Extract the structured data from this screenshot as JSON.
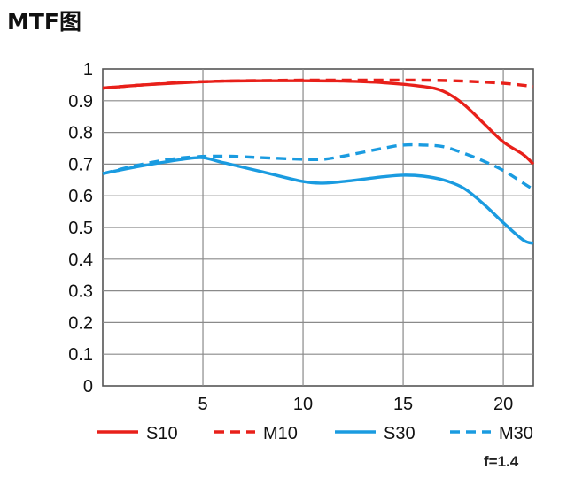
{
  "page": {
    "title": "MTF图",
    "aperture_label": "f=1.4"
  },
  "chart_data": {
    "type": "line",
    "title": "MTF图",
    "xlabel": "",
    "ylabel": "",
    "xlim": [
      0,
      21.5
    ],
    "ylim": [
      0,
      1
    ],
    "x_ticks": [
      5,
      10,
      15,
      20
    ],
    "x_tick_labels": [
      "5",
      "10",
      "15",
      "20"
    ],
    "y_ticks": [
      0,
      0.1,
      0.2,
      0.3,
      0.4,
      0.5,
      0.6,
      0.7,
      0.8,
      0.9,
      1
    ],
    "y_tick_labels": [
      "0",
      "0.1",
      "0.2",
      "0.3",
      "0.4",
      "0.5",
      "0.6",
      "0.7",
      "0.8",
      "0.9",
      "1"
    ],
    "grid": true,
    "legend_position": "bottom",
    "series": [
      {
        "name": "S10",
        "color": "#e8201a",
        "dash": "solid",
        "x": [
          0,
          2,
          4,
          6,
          8,
          10,
          12,
          14,
          16,
          17,
          18,
          19,
          20,
          21,
          21.5
        ],
        "values": [
          0.94,
          0.95,
          0.957,
          0.962,
          0.963,
          0.963,
          0.962,
          0.957,
          0.945,
          0.93,
          0.89,
          0.83,
          0.77,
          0.73,
          0.7
        ]
      },
      {
        "name": "M10",
        "color": "#e8201a",
        "dash": "dashed",
        "x": [
          0,
          2,
          4,
          6,
          8,
          10,
          12,
          14,
          16,
          18,
          20,
          21.5
        ],
        "values": [
          0.94,
          0.95,
          0.958,
          0.962,
          0.964,
          0.965,
          0.965,
          0.965,
          0.965,
          0.962,
          0.955,
          0.945
        ]
      },
      {
        "name": "S30",
        "color": "#1a9be0",
        "dash": "solid",
        "x": [
          0,
          2,
          4,
          5,
          6,
          8,
          10,
          11,
          12,
          14,
          15,
          16,
          17,
          18,
          19,
          20,
          21,
          21.5
        ],
        "values": [
          0.67,
          0.695,
          0.715,
          0.72,
          0.705,
          0.675,
          0.645,
          0.64,
          0.645,
          0.66,
          0.665,
          0.662,
          0.65,
          0.625,
          0.575,
          0.515,
          0.46,
          0.45
        ]
      },
      {
        "name": "M30",
        "color": "#1a9be0",
        "dash": "dashed",
        "x": [
          0,
          2,
          4,
          6,
          8,
          10,
          11,
          12,
          14,
          15,
          16,
          17,
          18,
          19,
          20,
          21,
          21.5
        ],
        "values": [
          0.67,
          0.7,
          0.72,
          0.725,
          0.72,
          0.715,
          0.715,
          0.725,
          0.75,
          0.76,
          0.76,
          0.755,
          0.735,
          0.71,
          0.68,
          0.64,
          0.62
        ]
      }
    ]
  }
}
